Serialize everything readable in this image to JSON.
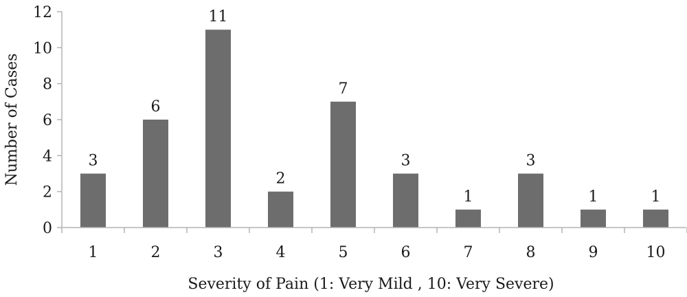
{
  "chart_data": {
    "type": "bar",
    "categories": [
      "1",
      "2",
      "3",
      "4",
      "5",
      "6",
      "7",
      "8",
      "9",
      "10"
    ],
    "values": [
      3,
      6,
      11,
      2,
      7,
      3,
      1,
      3,
      1,
      1
    ],
    "data_labels": [
      "3",
      "6",
      "11",
      "2",
      "7",
      "3",
      "1",
      "3",
      "1",
      "1"
    ],
    "xlabel": "Severity of Pain (1: Very Mild , 10: Very Severe)",
    "ylabel": "Number of Cases",
    "ylim": [
      0,
      12
    ],
    "yticks": [
      "0",
      "2",
      "4",
      "6",
      "8",
      "10",
      "12"
    ],
    "grid": false,
    "bar_color": "#6d6d6d",
    "axis_color": "#b3b3b3"
  }
}
